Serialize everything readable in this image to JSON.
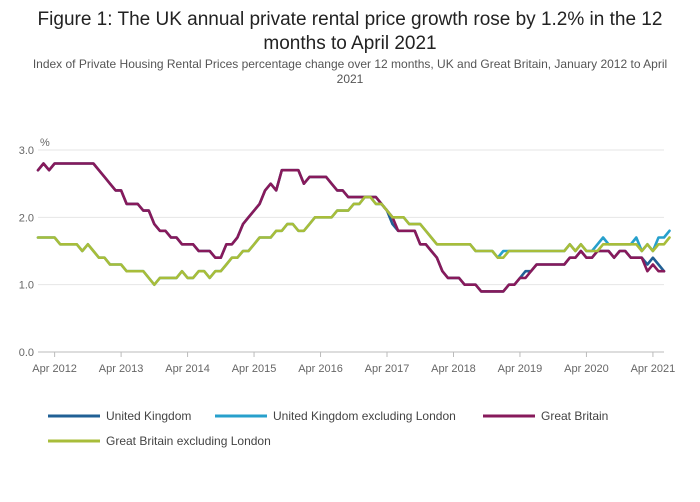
{
  "chart_data": {
    "type": "line",
    "title": "Figure 1: The UK annual private rental price growth rose by 1.2% in the 12 months to April 2021",
    "subtitle": "Index of Private Housing Rental Prices percentage change over 12 months, UK and Great Britain, January 2012 to April 2021",
    "ylabel": "%",
    "xlabel": "",
    "ylim": [
      0,
      3
    ],
    "y_ticks": [
      "0.0",
      "1.0",
      "2.0",
      "3.0"
    ],
    "x_ticks": [
      "Apr 2012",
      "Apr 2013",
      "Apr 2014",
      "Apr 2015",
      "Apr 2016",
      "Apr 2017",
      "Apr 2018",
      "Apr 2019",
      "Apr 2020",
      "Apr 2021"
    ],
    "x_start": "Jan 2012",
    "x_end": "Apr 2021",
    "grid": true,
    "legend_position": "bottom",
    "series": [
      {
        "name": "United Kingdom",
        "color": "#206095",
        "values": [
          2.7,
          2.8,
          2.7,
          2.8,
          2.8,
          2.8,
          2.8,
          2.8,
          2.8,
          2.8,
          2.8,
          2.7,
          2.6,
          2.5,
          2.4,
          2.4,
          2.2,
          2.2,
          2.2,
          2.1,
          2.1,
          1.9,
          1.8,
          1.8,
          1.7,
          1.7,
          1.6,
          1.6,
          1.6,
          1.5,
          1.5,
          1.5,
          1.4,
          1.4,
          1.6,
          1.6,
          1.7,
          1.9,
          2.0,
          2.1,
          2.2,
          2.4,
          2.5,
          2.4,
          2.7,
          2.7,
          2.7,
          2.7,
          2.5,
          2.6,
          2.6,
          2.6,
          2.6,
          2.5,
          2.4,
          2.4,
          2.3,
          2.3,
          2.3,
          2.3,
          2.3,
          2.3,
          2.2,
          2.1,
          1.9,
          1.8,
          1.8,
          1.8,
          1.8,
          1.6,
          1.6,
          1.5,
          1.4,
          1.2,
          1.1,
          1.1,
          1.1,
          1.0,
          1.0,
          1.0,
          0.9,
          0.9,
          0.9,
          0.9,
          0.9,
          1.0,
          1.0,
          1.1,
          1.2,
          1.2,
          1.3,
          1.3,
          1.3,
          1.3,
          1.3,
          1.3,
          1.4,
          1.4,
          1.5,
          1.4,
          1.4,
          1.5,
          1.5,
          1.5,
          1.4,
          1.5,
          1.5,
          1.4,
          1.4,
          1.4,
          1.3,
          1.4,
          1.3,
          1.2
        ]
      },
      {
        "name": "United Kingdom excluding London",
        "color": "#27A0CC",
        "values": [
          1.7,
          1.7,
          1.7,
          1.7,
          1.6,
          1.6,
          1.6,
          1.6,
          1.5,
          1.6,
          1.5,
          1.4,
          1.4,
          1.3,
          1.3,
          1.3,
          1.2,
          1.2,
          1.2,
          1.2,
          1.1,
          1.0,
          1.1,
          1.1,
          1.1,
          1.1,
          1.2,
          1.1,
          1.1,
          1.2,
          1.2,
          1.1,
          1.2,
          1.2,
          1.3,
          1.4,
          1.4,
          1.5,
          1.5,
          1.6,
          1.7,
          1.7,
          1.7,
          1.8,
          1.8,
          1.9,
          1.9,
          1.8,
          1.8,
          1.9,
          2.0,
          2.0,
          2.0,
          2.0,
          2.1,
          2.1,
          2.1,
          2.2,
          2.2,
          2.3,
          2.3,
          2.2,
          2.2,
          2.1,
          2.0,
          2.0,
          2.0,
          1.9,
          1.9,
          1.9,
          1.8,
          1.7,
          1.6,
          1.6,
          1.6,
          1.6,
          1.6,
          1.6,
          1.6,
          1.5,
          1.5,
          1.5,
          1.5,
          1.4,
          1.5,
          1.5,
          1.5,
          1.5,
          1.5,
          1.5,
          1.5,
          1.5,
          1.5,
          1.5,
          1.5,
          1.5,
          1.6,
          1.5,
          1.6,
          1.5,
          1.5,
          1.6,
          1.7,
          1.6,
          1.6,
          1.6,
          1.6,
          1.6,
          1.7,
          1.5,
          1.6,
          1.5,
          1.7,
          1.7,
          1.8
        ]
      },
      {
        "name": "Great Britain",
        "color": "#871A5B",
        "values": [
          2.7,
          2.8,
          2.7,
          2.8,
          2.8,
          2.8,
          2.8,
          2.8,
          2.8,
          2.8,
          2.8,
          2.7,
          2.6,
          2.5,
          2.4,
          2.4,
          2.2,
          2.2,
          2.2,
          2.1,
          2.1,
          1.9,
          1.8,
          1.8,
          1.7,
          1.7,
          1.6,
          1.6,
          1.6,
          1.5,
          1.5,
          1.5,
          1.4,
          1.4,
          1.6,
          1.6,
          1.7,
          1.9,
          2.0,
          2.1,
          2.2,
          2.4,
          2.5,
          2.4,
          2.7,
          2.7,
          2.7,
          2.7,
          2.5,
          2.6,
          2.6,
          2.6,
          2.6,
          2.5,
          2.4,
          2.4,
          2.3,
          2.3,
          2.3,
          2.3,
          2.3,
          2.3,
          2.2,
          2.1,
          2.0,
          1.8,
          1.8,
          1.8,
          1.8,
          1.6,
          1.6,
          1.5,
          1.4,
          1.2,
          1.1,
          1.1,
          1.1,
          1.0,
          1.0,
          1.0,
          0.9,
          0.9,
          0.9,
          0.9,
          0.9,
          1.0,
          1.0,
          1.1,
          1.1,
          1.2,
          1.3,
          1.3,
          1.3,
          1.3,
          1.3,
          1.3,
          1.4,
          1.4,
          1.5,
          1.4,
          1.4,
          1.5,
          1.5,
          1.5,
          1.4,
          1.5,
          1.5,
          1.4,
          1.4,
          1.4,
          1.2,
          1.3,
          1.2,
          1.2
        ]
      },
      {
        "name": "Great Britain excluding London",
        "color": "#A8BD3A",
        "values": [
          1.7,
          1.7,
          1.7,
          1.7,
          1.6,
          1.6,
          1.6,
          1.6,
          1.5,
          1.6,
          1.5,
          1.4,
          1.4,
          1.3,
          1.3,
          1.3,
          1.2,
          1.2,
          1.2,
          1.2,
          1.1,
          1.0,
          1.1,
          1.1,
          1.1,
          1.1,
          1.2,
          1.1,
          1.1,
          1.2,
          1.2,
          1.1,
          1.2,
          1.2,
          1.3,
          1.4,
          1.4,
          1.5,
          1.5,
          1.6,
          1.7,
          1.7,
          1.7,
          1.8,
          1.8,
          1.9,
          1.9,
          1.8,
          1.8,
          1.9,
          2.0,
          2.0,
          2.0,
          2.0,
          2.1,
          2.1,
          2.1,
          2.2,
          2.2,
          2.3,
          2.3,
          2.2,
          2.2,
          2.1,
          2.0,
          2.0,
          2.0,
          1.9,
          1.9,
          1.9,
          1.8,
          1.7,
          1.6,
          1.6,
          1.6,
          1.6,
          1.6,
          1.6,
          1.6,
          1.5,
          1.5,
          1.5,
          1.5,
          1.4,
          1.4,
          1.5,
          1.5,
          1.5,
          1.5,
          1.5,
          1.5,
          1.5,
          1.5,
          1.5,
          1.5,
          1.5,
          1.6,
          1.5,
          1.6,
          1.5,
          1.5,
          1.5,
          1.6,
          1.6,
          1.6,
          1.6,
          1.6,
          1.6,
          1.6,
          1.5,
          1.6,
          1.5,
          1.6,
          1.6,
          1.7
        ]
      }
    ]
  }
}
